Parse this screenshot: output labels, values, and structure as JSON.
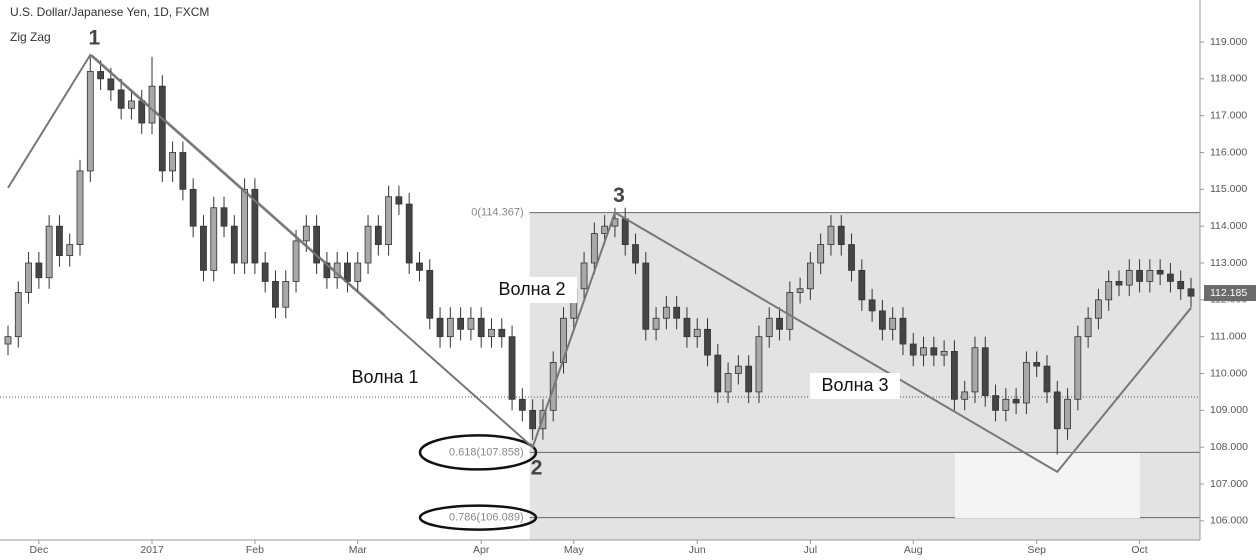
{
  "chart_data": {
    "type": "candlestick",
    "title": "U.S. Dollar/Japanese Yen, 1D, FXCM",
    "indicator": "Zig Zag",
    "up_color": "#a8a8a8",
    "down_color": "#454545",
    "categories": [
      null,
      null,
      null,
      "Dec",
      null,
      null,
      null,
      null,
      null,
      null,
      null,
      null,
      null,
      null,
      "2017",
      null,
      null,
      null,
      null,
      null,
      null,
      null,
      null,
      null,
      "Feb",
      null,
      null,
      null,
      null,
      null,
      null,
      null,
      null,
      null,
      "Mar",
      null,
      null,
      null,
      null,
      null,
      null,
      null,
      null,
      null,
      null,
      null,
      "Apr",
      null,
      null,
      null,
      null,
      null,
      null,
      null,
      null,
      "May",
      null,
      null,
      null,
      null,
      null,
      null,
      null,
      null,
      null,
      null,
      null,
      "Jun",
      null,
      null,
      null,
      null,
      null,
      null,
      null,
      null,
      null,
      null,
      "Jul",
      null,
      null,
      null,
      null,
      null,
      null,
      null,
      null,
      null,
      "Aug",
      null,
      null,
      null,
      null,
      null,
      null,
      null,
      null,
      null,
      null,
      null,
      "Sep",
      null,
      null,
      null,
      null,
      null,
      null,
      null,
      null,
      null,
      "Oct",
      null,
      null,
      null,
      null,
      null
    ],
    "ohlc": [
      [
        110.8,
        111.3,
        110.5,
        111.0
      ],
      [
        111.0,
        112.5,
        110.7,
        112.2
      ],
      [
        112.2,
        113.3,
        111.9,
        113.0
      ],
      [
        113.0,
        113.3,
        112.3,
        112.6
      ],
      [
        112.6,
        114.3,
        112.3,
        114.0
      ],
      [
        114.0,
        114.3,
        112.9,
        113.2
      ],
      [
        113.2,
        113.8,
        112.9,
        113.5
      ],
      [
        113.5,
        115.8,
        113.2,
        115.5
      ],
      [
        115.5,
        118.6,
        115.2,
        118.2
      ],
      [
        118.2,
        118.5,
        117.7,
        118.0
      ],
      [
        118.0,
        118.3,
        117.4,
        117.7
      ],
      [
        117.7,
        118.0,
        116.9,
        117.2
      ],
      [
        117.2,
        117.7,
        116.9,
        117.4
      ],
      [
        117.4,
        117.7,
        116.5,
        116.8
      ],
      [
        116.8,
        118.6,
        116.5,
        117.8
      ],
      [
        117.8,
        118.1,
        115.2,
        115.5
      ],
      [
        115.5,
        116.3,
        115.2,
        116.0
      ],
      [
        116.0,
        116.3,
        114.7,
        115.0
      ],
      [
        115.0,
        115.3,
        113.7,
        114.0
      ],
      [
        114.0,
        114.3,
        112.5,
        112.8
      ],
      [
        112.8,
        114.8,
        112.5,
        114.5
      ],
      [
        114.5,
        114.8,
        113.7,
        114.0
      ],
      [
        114.0,
        114.3,
        112.7,
        113.0
      ],
      [
        113.0,
        115.3,
        112.7,
        115.0
      ],
      [
        115.0,
        115.3,
        112.7,
        113.0
      ],
      [
        113.0,
        113.3,
        112.2,
        112.5
      ],
      [
        112.5,
        112.8,
        111.5,
        111.8
      ],
      [
        111.8,
        112.8,
        111.5,
        112.5
      ],
      [
        112.5,
        113.9,
        112.2,
        113.6
      ],
      [
        113.6,
        114.3,
        113.3,
        114.0
      ],
      [
        114.0,
        114.3,
        112.7,
        113.0
      ],
      [
        113.0,
        113.3,
        112.3,
        112.6
      ],
      [
        112.6,
        113.3,
        112.3,
        113.0
      ],
      [
        113.0,
        113.3,
        112.2,
        112.5
      ],
      [
        112.5,
        113.3,
        112.2,
        113.0
      ],
      [
        113.0,
        114.3,
        112.7,
        114.0
      ],
      [
        114.0,
        114.3,
        113.2,
        113.5
      ],
      [
        113.5,
        115.1,
        113.2,
        114.8
      ],
      [
        114.8,
        115.1,
        114.3,
        114.6
      ],
      [
        114.6,
        114.9,
        112.7,
        113.0
      ],
      [
        113.0,
        113.3,
        112.5,
        112.8
      ],
      [
        112.8,
        113.1,
        111.2,
        111.5
      ],
      [
        111.5,
        111.8,
        110.7,
        111.0
      ],
      [
        111.0,
        111.8,
        110.7,
        111.5
      ],
      [
        111.5,
        111.8,
        110.9,
        111.2
      ],
      [
        111.2,
        111.8,
        110.9,
        111.5
      ],
      [
        111.5,
        111.8,
        110.7,
        111.0
      ],
      [
        111.0,
        111.5,
        110.7,
        111.2
      ],
      [
        111.2,
        111.5,
        110.7,
        111.0
      ],
      [
        111.0,
        111.3,
        109.0,
        109.3
      ],
      [
        109.3,
        109.6,
        108.7,
        109.0
      ],
      [
        109.0,
        109.3,
        108.2,
        108.5
      ],
      [
        108.5,
        109.3,
        108.2,
        109.0
      ],
      [
        109.0,
        110.6,
        108.7,
        110.3
      ],
      [
        110.3,
        111.8,
        110.0,
        111.5
      ],
      [
        111.5,
        112.6,
        111.2,
        112.3
      ],
      [
        112.3,
        113.3,
        112.0,
        113.0
      ],
      [
        113.0,
        114.1,
        112.7,
        113.8
      ],
      [
        113.8,
        114.3,
        113.5,
        114.0
      ],
      [
        114.0,
        114.5,
        113.7,
        114.2
      ],
      [
        114.2,
        114.5,
        113.2,
        113.5
      ],
      [
        113.5,
        113.8,
        112.7,
        113.0
      ],
      [
        113.0,
        113.3,
        110.9,
        111.2
      ],
      [
        111.2,
        111.8,
        110.9,
        111.5
      ],
      [
        111.5,
        112.1,
        111.2,
        111.8
      ],
      [
        111.8,
        112.1,
        111.2,
        111.5
      ],
      [
        111.5,
        111.8,
        110.7,
        111.0
      ],
      [
        111.0,
        111.5,
        110.7,
        111.2
      ],
      [
        111.2,
        111.5,
        110.2,
        110.5
      ],
      [
        110.5,
        110.8,
        109.2,
        109.5
      ],
      [
        109.5,
        110.3,
        109.2,
        110.0
      ],
      [
        110.0,
        110.5,
        109.7,
        110.2
      ],
      [
        110.2,
        110.5,
        109.2,
        109.5
      ],
      [
        109.5,
        111.3,
        109.2,
        111.0
      ],
      [
        111.0,
        111.8,
        110.7,
        111.5
      ],
      [
        111.5,
        111.8,
        110.9,
        111.2
      ],
      [
        111.2,
        112.5,
        110.9,
        112.2
      ],
      [
        112.2,
        112.6,
        111.9,
        112.3
      ],
      [
        112.3,
        113.3,
        112.0,
        113.0
      ],
      [
        113.0,
        113.8,
        112.7,
        113.5
      ],
      [
        113.5,
        114.3,
        113.2,
        114.0
      ],
      [
        114.0,
        114.3,
        113.2,
        113.5
      ],
      [
        113.5,
        113.8,
        112.5,
        112.8
      ],
      [
        112.8,
        113.1,
        111.7,
        112.0
      ],
      [
        112.0,
        112.3,
        111.4,
        111.7
      ],
      [
        111.7,
        112.0,
        110.9,
        111.2
      ],
      [
        111.2,
        111.8,
        110.9,
        111.5
      ],
      [
        111.5,
        111.8,
        110.5,
        110.8
      ],
      [
        110.8,
        111.1,
        110.2,
        110.5
      ],
      [
        110.5,
        111.0,
        110.2,
        110.7
      ],
      [
        110.7,
        111.0,
        110.2,
        110.5
      ],
      [
        110.5,
        110.9,
        110.2,
        110.6
      ],
      [
        110.6,
        110.9,
        109.0,
        109.3
      ],
      [
        109.3,
        109.8,
        109.0,
        109.5
      ],
      [
        109.5,
        111.0,
        109.2,
        110.7
      ],
      [
        110.7,
        111.0,
        109.1,
        109.4
      ],
      [
        109.4,
        109.7,
        108.7,
        109.0
      ],
      [
        109.0,
        109.6,
        108.7,
        109.3
      ],
      [
        109.3,
        109.6,
        108.9,
        109.2
      ],
      [
        109.2,
        110.6,
        108.9,
        110.3
      ],
      [
        110.3,
        110.6,
        109.9,
        110.2
      ],
      [
        110.2,
        110.5,
        109.2,
        109.5
      ],
      [
        109.5,
        109.8,
        107.8,
        108.5
      ],
      [
        108.5,
        109.6,
        108.2,
        109.3
      ],
      [
        109.3,
        111.3,
        109.0,
        111.0
      ],
      [
        111.0,
        111.8,
        110.7,
        111.5
      ],
      [
        111.5,
        112.3,
        111.2,
        112.0
      ],
      [
        112.0,
        112.8,
        111.7,
        112.5
      ],
      [
        112.5,
        112.8,
        112.1,
        112.4
      ],
      [
        112.4,
        113.1,
        112.1,
        112.8
      ],
      [
        112.8,
        113.1,
        112.2,
        112.5
      ],
      [
        112.5,
        113.1,
        112.2,
        112.8
      ],
      [
        112.8,
        113.1,
        112.4,
        112.7
      ],
      [
        112.7,
        113.0,
        112.2,
        112.5
      ],
      [
        112.5,
        112.8,
        112.0,
        112.3
      ],
      [
        112.3,
        112.6,
        111.8,
        112.1
      ]
    ],
    "zigzag": {
      "color": "#777777",
      "x": [
        0,
        8,
        51,
        59,
        102,
        115
      ],
      "values": [
        115.04,
        118.65,
        108.0,
        114.37,
        107.33,
        111.78
      ],
      "point_labels": [
        null,
        "1",
        "2",
        "3",
        null,
        null
      ]
    },
    "annotations": [
      "Волна 1",
      "Волна 2",
      "Волна 3"
    ],
    "fib": {
      "levels": [
        {
          "value": 114.367,
          "label": "0(114.367)"
        },
        {
          "value": 107.858,
          "label": "0.618(107.858)"
        },
        {
          "value": 106.089,
          "label": "0.786(106.089)"
        }
      ],
      "start": 51
    },
    "last_price": {
      "value": 112.185,
      "label": "112.185"
    },
    "ylim": [
      105.48,
      120.14
    ],
    "yticks": [
      {
        "value": 106,
        "label": "106.000"
      },
      {
        "value": 107,
        "label": "107.000"
      },
      {
        "value": 108,
        "label": "108.000"
      },
      {
        "value": 109,
        "label": "109.000"
      },
      {
        "value": 110,
        "label": "110.000"
      },
      {
        "value": 111,
        "label": "111.000"
      },
      {
        "value": 112,
        "label": "112.000"
      },
      {
        "value": 113,
        "label": "113.000"
      },
      {
        "value": 114,
        "label": "114.000"
      },
      {
        "value": 115,
        "label": "115.000"
      },
      {
        "value": 116,
        "label": "116.000"
      },
      {
        "value": 117,
        "label": "117.000"
      },
      {
        "value": 118,
        "label": "118.000"
      },
      {
        "value": 119,
        "label": "119.000"
      }
    ]
  }
}
